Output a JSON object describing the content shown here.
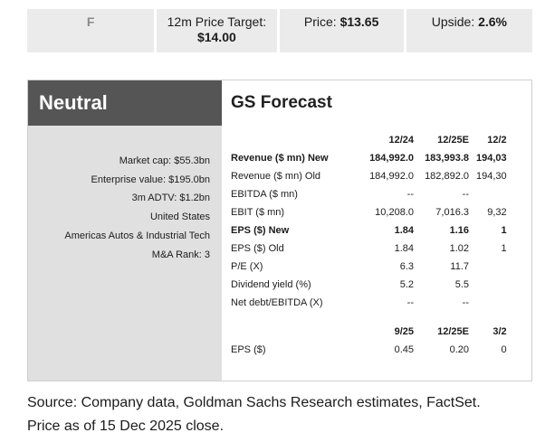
{
  "topbar": {
    "ticker": "F",
    "target_label": "12m Price Target:",
    "target_value": "$14.00",
    "price_label": "Price:",
    "price_value": "$13.65",
    "upside_label": "Upside:",
    "upside_value": "2.6%"
  },
  "card": {
    "rating": "Neutral",
    "meta": [
      "Market cap: $55.3bn",
      "Enterprise value: $195.0bn",
      "3m ADTV: $1.2bn",
      "United States",
      "Americas Autos & Industrial Tech",
      "M&A Rank: 3"
    ],
    "forecast_title": "GS Forecast",
    "header": [
      "",
      "12/24",
      "12/25E",
      "12/2"
    ],
    "rows": [
      {
        "label": "Revenue ($ mn) New",
        "bold": true,
        "values": [
          "184,992.0",
          "183,993.8",
          "194,03"
        ]
      },
      {
        "label": "Revenue ($ mn) Old",
        "bold": false,
        "values": [
          "184,992.0",
          "182,892.0",
          "194,30"
        ]
      },
      {
        "label": "EBITDA ($ mn)",
        "bold": false,
        "values": [
          "--",
          "--",
          ""
        ]
      },
      {
        "label": "EBIT ($ mn)",
        "bold": false,
        "values": [
          "10,208.0",
          "7,016.3",
          "9,32"
        ]
      },
      {
        "label": "EPS ($) New",
        "bold": true,
        "values": [
          "1.84",
          "1.16",
          "1"
        ]
      },
      {
        "label": "EPS ($) Old",
        "bold": false,
        "values": [
          "1.84",
          "1.02",
          "1"
        ]
      },
      {
        "label": "P/E (X)",
        "bold": false,
        "values": [
          "6.3",
          "11.7",
          ""
        ]
      },
      {
        "label": "Dividend yield (%)",
        "bold": false,
        "values": [
          "5.2",
          "5.5",
          ""
        ]
      },
      {
        "label": "Net debt/EBITDA (X)",
        "bold": false,
        "values": [
          "--",
          "--",
          ""
        ]
      }
    ],
    "quarter_header": [
      "",
      "9/25",
      "12/25E",
      "3/2"
    ],
    "quarter_rows": [
      {
        "label": "EPS ($)",
        "values": [
          "0.45",
          "0.20",
          "0"
        ]
      }
    ]
  },
  "source": {
    "line1": "Source: Company data, Goldman Sachs Research estimates, FactSet.",
    "line2": "Price as of 15 Dec 2025 close."
  }
}
